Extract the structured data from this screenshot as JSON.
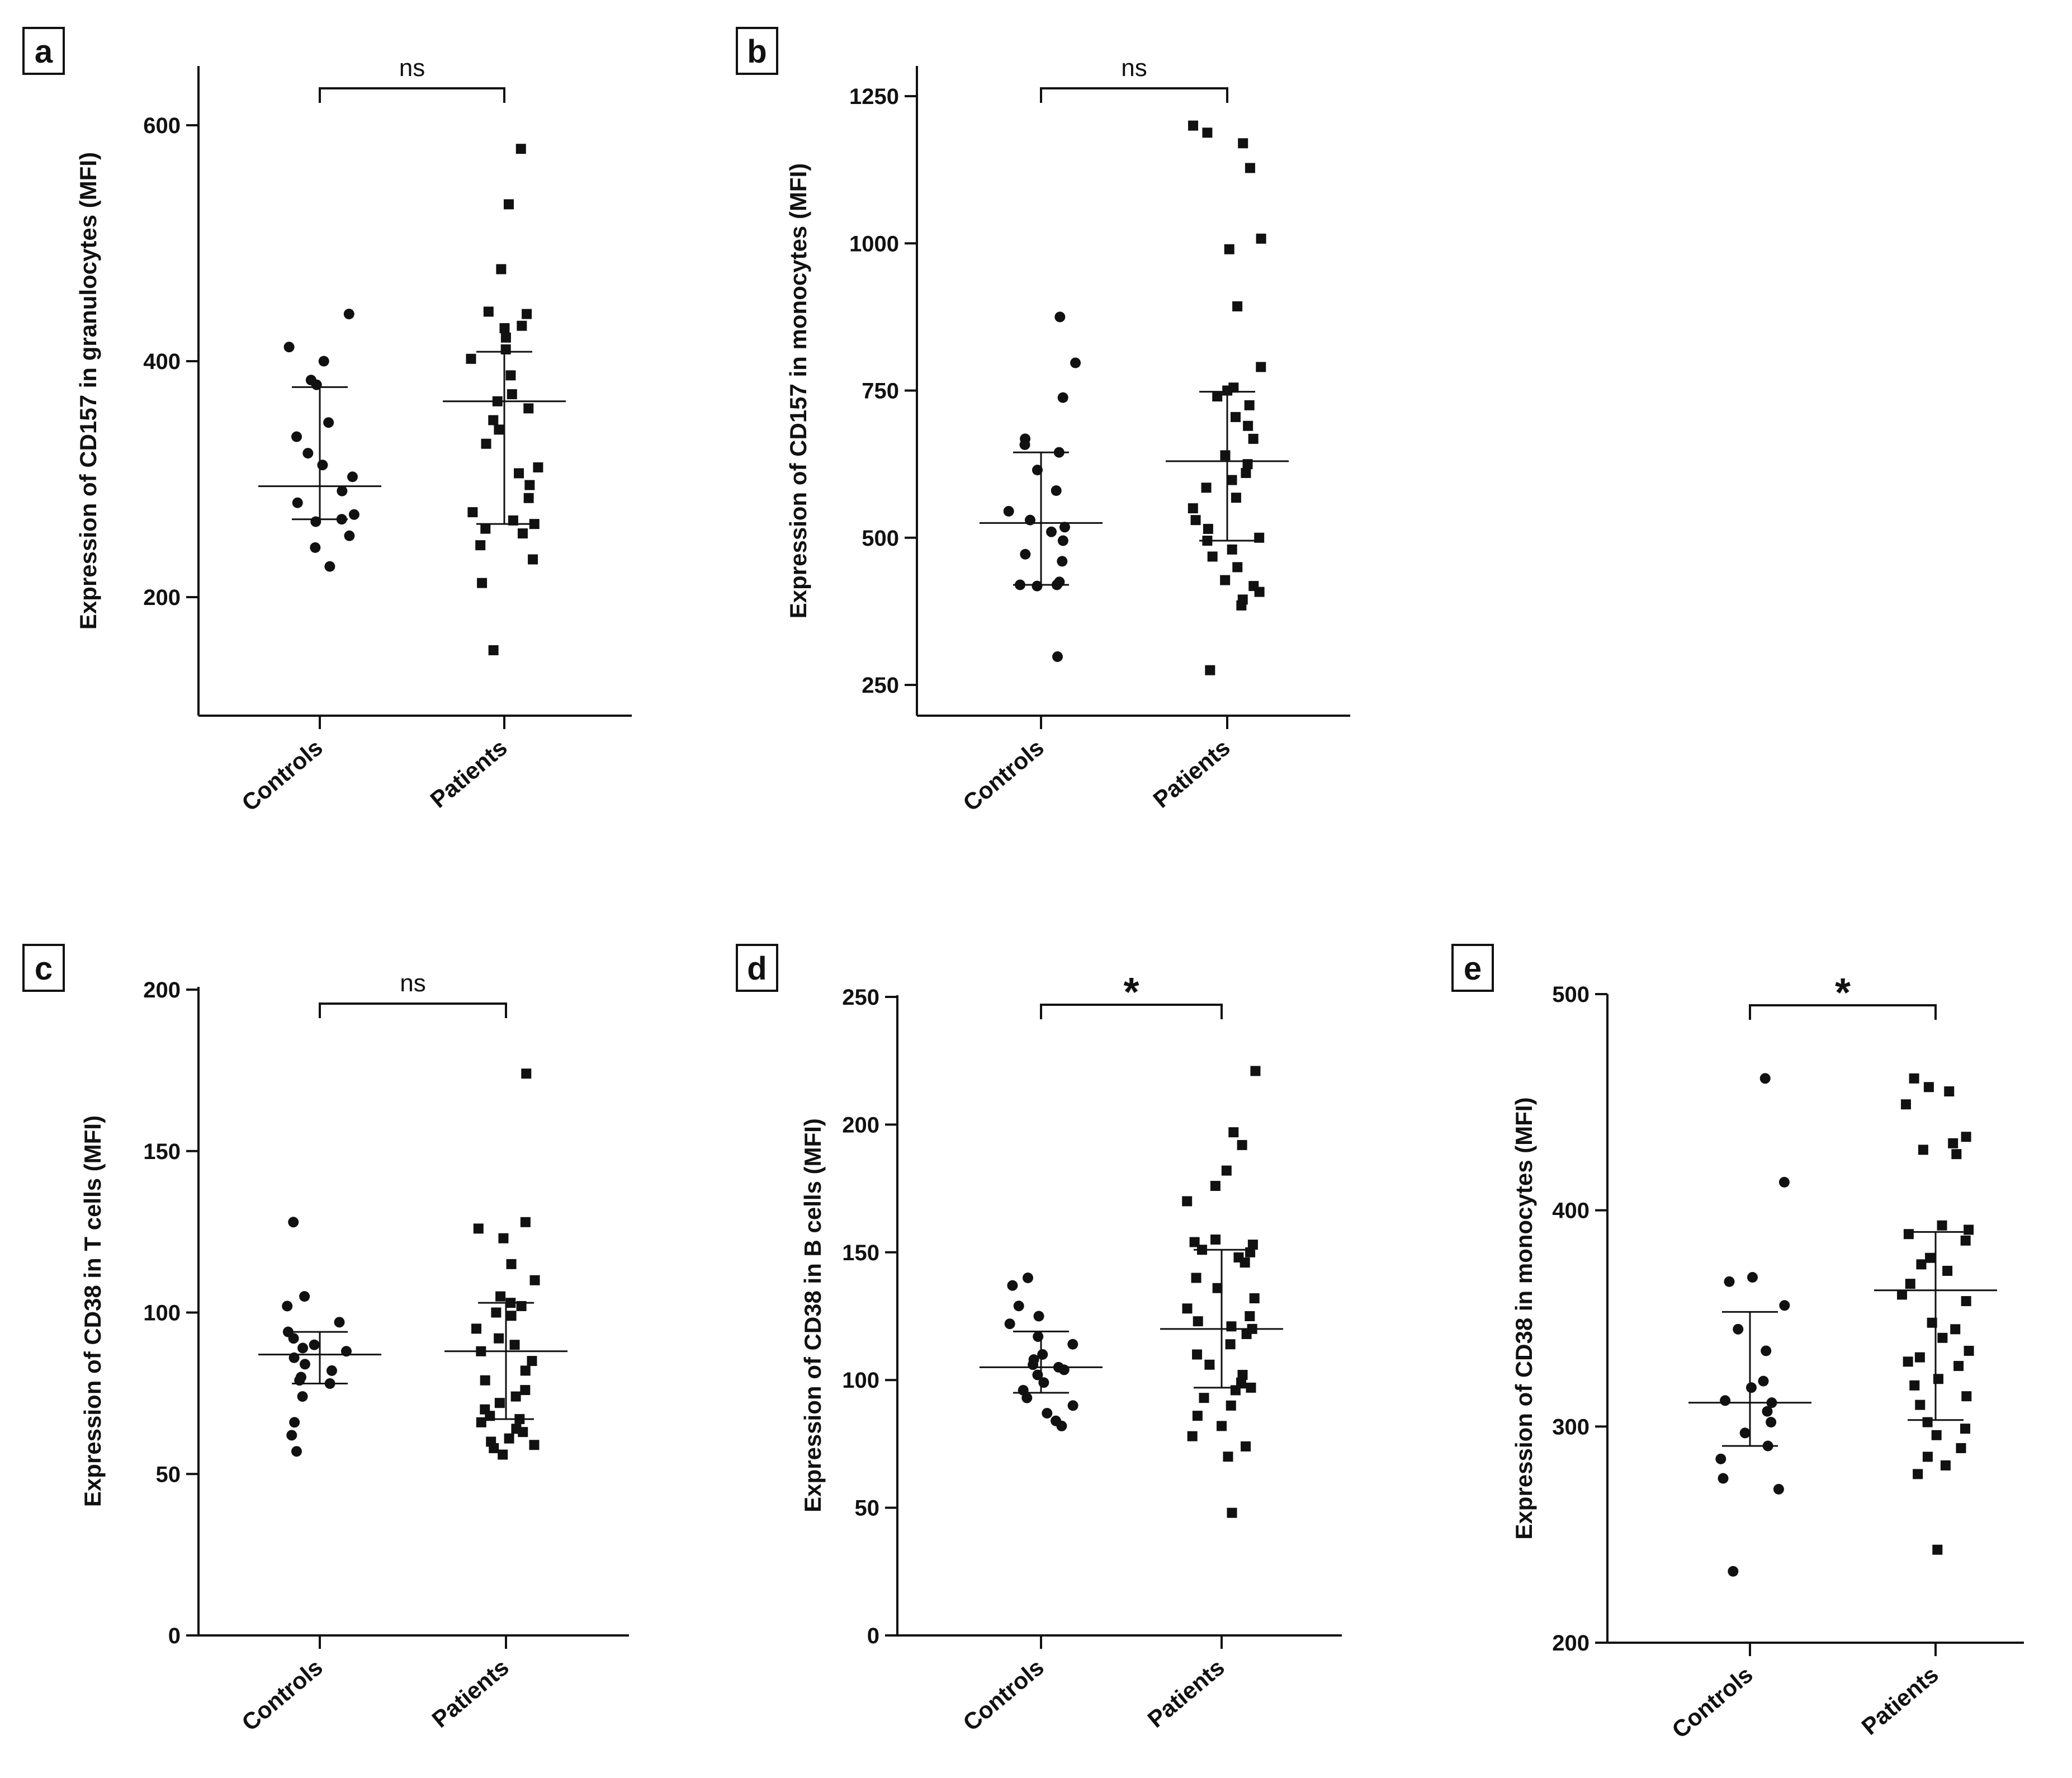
{
  "figure": {
    "panel_count": 5,
    "group_labels": [
      "Controls",
      "Patients"
    ]
  },
  "chart_data": [
    {
      "type": "scatter",
      "panel": "a",
      "title": "",
      "xlabel": "",
      "ylabel": "Expression of CD157 in granulocytes (MFI)",
      "categories": [
        "Controls",
        "Patients"
      ],
      "ylim": [
        100,
        650
      ],
      "yticks": [
        200,
        400,
        600
      ],
      "significance": "ns",
      "series": [
        {
          "name": "Controls",
          "marker": "circle",
          "values": [
            440,
            412,
            400,
            384,
            380,
            348,
            336,
            322,
            312,
            302,
            290,
            280,
            270,
            266,
            264,
            252,
            242,
            226
          ],
          "mean": 294,
          "error_low": 266,
          "error_high": 378
        },
        {
          "name": "Patients",
          "marker": "square",
          "values": [
            580,
            533,
            478,
            442,
            440,
            430,
            428,
            420,
            410,
            402,
            388,
            372,
            366,
            360,
            350,
            342,
            330,
            310,
            305,
            295,
            284,
            272,
            265,
            262,
            258,
            254,
            244,
            232,
            212,
            155
          ],
          "mean": 366,
          "error_low": 262,
          "error_high": 408
        }
      ]
    },
    {
      "type": "scatter",
      "panel": "b",
      "title": "",
      "xlabel": "",
      "ylabel": "Expression of CD157 in monocytes (MFI)",
      "categories": [
        "Controls",
        "Patients"
      ],
      "ylim": [
        200,
        1300
      ],
      "yticks": [
        250,
        500,
        750,
        1000,
        1250
      ],
      "significance": "ns",
      "series": [
        {
          "name": "Controls",
          "marker": "circle",
          "values": [
            875,
            797,
            738,
            668,
            658,
            645,
            615,
            580,
            545,
            530,
            518,
            510,
            495,
            472,
            460,
            425,
            420,
            420,
            418,
            298
          ],
          "mean": 525,
          "error_low": 420,
          "error_high": 645
        },
        {
          "name": "Patients",
          "marker": "square",
          "values": [
            1200,
            1188,
            1170,
            1128,
            1008,
            990,
            893,
            790,
            755,
            750,
            740,
            725,
            705,
            690,
            668,
            640,
            625,
            610,
            598,
            585,
            568,
            550,
            530,
            515,
            500,
            495,
            480,
            468,
            450,
            428,
            418,
            408,
            395,
            385,
            275
          ],
          "mean": 630,
          "error_low": 495,
          "error_high": 748
        }
      ]
    },
    {
      "type": "scatter",
      "panel": "c",
      "title": "",
      "xlabel": "",
      "ylabel": "Expression of CD38 in T cells (MFI)",
      "categories": [
        "Controls",
        "Patients"
      ],
      "ylim": [
        0,
        200
      ],
      "yticks": [
        0,
        50,
        100,
        150,
        200
      ],
      "significance": "ns",
      "series": [
        {
          "name": "Controls",
          "marker": "circle",
          "values": [
            128,
            105,
            102,
            97,
            94,
            92,
            90,
            89,
            88,
            86,
            84,
            82,
            80,
            79,
            78,
            74,
            66,
            62,
            57
          ],
          "mean": 87,
          "error_low": 78,
          "error_high": 94
        },
        {
          "name": "Patients",
          "marker": "square",
          "values": [
            174,
            128,
            126,
            123,
            115,
            110,
            105,
            103,
            102,
            100,
            99,
            95,
            92,
            90,
            88,
            85,
            82,
            79,
            76,
            74,
            72,
            70,
            68,
            67,
            66,
            64,
            63,
            61,
            60,
            59,
            58,
            56
          ],
          "mean": 88,
          "error_low": 67,
          "error_high": 103
        }
      ]
    },
    {
      "type": "scatter",
      "panel": "d",
      "title": "",
      "xlabel": "",
      "ylabel": "Expression of CD38 in B cells (MFI)",
      "categories": [
        "Controls",
        "Patients"
      ],
      "ylim": [
        0,
        250
      ],
      "yticks": [
        0,
        50,
        100,
        150,
        200,
        250
      ],
      "significance": "*",
      "series": [
        {
          "name": "Controls",
          "marker": "circle",
          "values": [
            140,
            137,
            129,
            125,
            122,
            117,
            114,
            110,
            108,
            106,
            105,
            104,
            102,
            99,
            96,
            93,
            90,
            87,
            84,
            82
          ],
          "mean": 105,
          "error_low": 95,
          "error_high": 119
        },
        {
          "name": "Patients",
          "marker": "square",
          "values": [
            221,
            197,
            192,
            182,
            176,
            170,
            155,
            154,
            153,
            151,
            150,
            148,
            146,
            140,
            136,
            132,
            128,
            125,
            123,
            121,
            120,
            118,
            114,
            110,
            106,
            102,
            99,
            97,
            96,
            93,
            90,
            86,
            82,
            78,
            74,
            70,
            48
          ],
          "mean": 120,
          "error_low": 97,
          "error_high": 151
        }
      ]
    },
    {
      "type": "scatter",
      "panel": "e",
      "title": "",
      "xlabel": "",
      "ylabel": "Expression of CD38 in monocytes (MFI)",
      "categories": [
        "Controls",
        "Patients"
      ],
      "ylim": [
        200,
        500
      ],
      "yticks": [
        200,
        300,
        400,
        500
      ],
      "significance": "*",
      "series": [
        {
          "name": "Controls",
          "marker": "circle",
          "values": [
            461,
            413,
            369,
            367,
            356,
            345,
            335,
            321,
            318,
            312,
            311,
            307,
            302,
            297,
            291,
            285,
            276,
            271,
            233
          ],
          "mean": 311,
          "error_low": 291,
          "error_high": 353
        },
        {
          "name": "Patients",
          "marker": "square",
          "values": [
            461,
            457,
            455,
            449,
            434,
            431,
            428,
            426,
            393,
            391,
            389,
            386,
            378,
            375,
            372,
            366,
            361,
            358,
            348,
            345,
            341,
            335,
            332,
            330,
            328,
            322,
            319,
            314,
            310,
            302,
            299,
            296,
            290,
            286,
            282,
            278,
            243
          ],
          "mean": 363,
          "error_low": 303,
          "error_high": 390
        }
      ]
    }
  ]
}
